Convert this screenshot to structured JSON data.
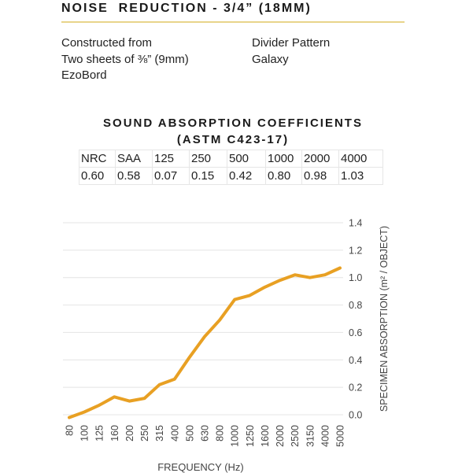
{
  "header": {
    "title": "NOISE  REDUCTION - 3/4” (18MM)"
  },
  "construction": {
    "lines": [
      "Constructed from",
      "Two sheets of ⅜” (9mm)",
      "EzoBord"
    ]
  },
  "pattern": {
    "lines": [
      "Divider Pattern",
      "Galaxy"
    ]
  },
  "coefficients": {
    "title_line1": "SOUND ABSORPTION COEFFICIENTS",
    "title_line2": "(ASTM C423-17)",
    "headers": [
      "NRC",
      "SAA",
      "125",
      "250",
      "500",
      "1000",
      "2000",
      "4000"
    ],
    "values": [
      "0.60",
      "0.58",
      "0.07",
      "0.15",
      "0.42",
      "0.80",
      "0.98",
      "1.03"
    ]
  },
  "colors": {
    "line": "#E8A023",
    "grid": "#e4e4e4",
    "title_rule": "#e8d48a"
  },
  "chart_data": {
    "type": "line",
    "xlabel": "FREQUENCY (Hz)",
    "ylabel": "SPECIMEN ABSORPTION (m² / OBJECT)",
    "x": [
      "80",
      "100",
      "125",
      "160",
      "200",
      "250",
      "315",
      "400",
      "500",
      "630",
      "800",
      "1000",
      "1250",
      "1600",
      "2000",
      "2500",
      "3150",
      "4000",
      "5000"
    ],
    "yticks": [
      "0.0",
      "0.2",
      "0.4",
      "0.6",
      "0.8",
      "1.0",
      "1.2",
      "1.4"
    ],
    "ylim": [
      0,
      1.4
    ],
    "grid": true,
    "series": [
      {
        "values": [
          -0.02,
          0.02,
          0.07,
          0.13,
          0.1,
          0.12,
          0.22,
          0.26,
          0.42,
          0.57,
          0.69,
          0.84,
          0.87,
          0.93,
          0.98,
          1.02,
          1.0,
          1.02,
          1.07
        ]
      }
    ]
  }
}
